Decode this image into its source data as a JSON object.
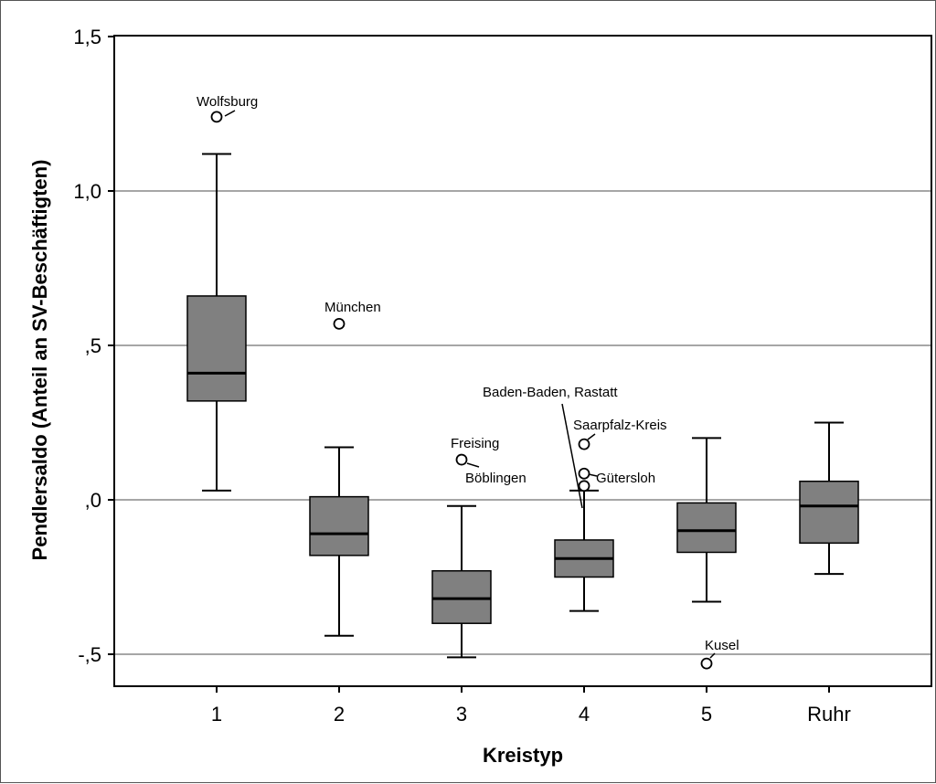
{
  "chart_data": {
    "type": "boxplot",
    "xlabel": "Kreistyp",
    "ylabel": "Pendlersaldo (Anteil an SV-Beschäftigten)",
    "ylim": [
      -0.6,
      1.5
    ],
    "y_ticks": [
      {
        "value": 1.5,
        "label": "1,5"
      },
      {
        "value": 1.0,
        "label": "1,0"
      },
      {
        "value": 0.5,
        "label": ",5"
      },
      {
        "value": 0.0,
        "label": ",0"
      },
      {
        "value": -0.5,
        "label": "-,5"
      }
    ],
    "grid_lines": [
      -0.5,
      0.0,
      0.5,
      1.0
    ],
    "box_color": "#808080",
    "grid_color": "#888888",
    "categories": [
      "1",
      "2",
      "3",
      "4",
      "5",
      "Ruhr"
    ],
    "boxes": [
      {
        "category": "1",
        "whisker_low": 0.03,
        "q1": 0.32,
        "median": 0.41,
        "q3": 0.66,
        "whisker_high": 1.12
      },
      {
        "category": "2",
        "whisker_low": -0.44,
        "q1": -0.18,
        "median": -0.11,
        "q3": 0.01,
        "whisker_high": 0.17
      },
      {
        "category": "3",
        "whisker_low": -0.51,
        "q1": -0.4,
        "median": -0.32,
        "q3": -0.23,
        "whisker_high": -0.02
      },
      {
        "category": "4",
        "whisker_low": -0.36,
        "q1": -0.25,
        "median": -0.19,
        "q3": -0.13,
        "whisker_high": 0.03
      },
      {
        "category": "5",
        "whisker_low": -0.33,
        "q1": -0.17,
        "median": -0.1,
        "q3": -0.01,
        "whisker_high": 0.2
      },
      {
        "category": "Ruhr",
        "whisker_low": -0.24,
        "q1": -0.14,
        "median": -0.02,
        "q3": 0.06,
        "whisker_high": 0.25
      }
    ],
    "outliers": [
      {
        "category": "1",
        "value": 1.24,
        "label": "Wolfsburg"
      },
      {
        "category": "2",
        "value": 0.57,
        "label": "München"
      },
      {
        "category": "3",
        "value": 0.13,
        "label": "Freising"
      },
      {
        "category": "3",
        "value": 0.13,
        "label": "Böblingen"
      },
      {
        "category": "4",
        "value": 0.18,
        "label": "Saarpfalz-Kreis"
      },
      {
        "category": "4",
        "value": 0.085,
        "label": "Gütersloh"
      },
      {
        "category": "4",
        "value": 0.045,
        "label": "Baden-Baden, Rastatt"
      },
      {
        "category": "5",
        "value": -0.53,
        "label": "Kusel"
      }
    ]
  }
}
